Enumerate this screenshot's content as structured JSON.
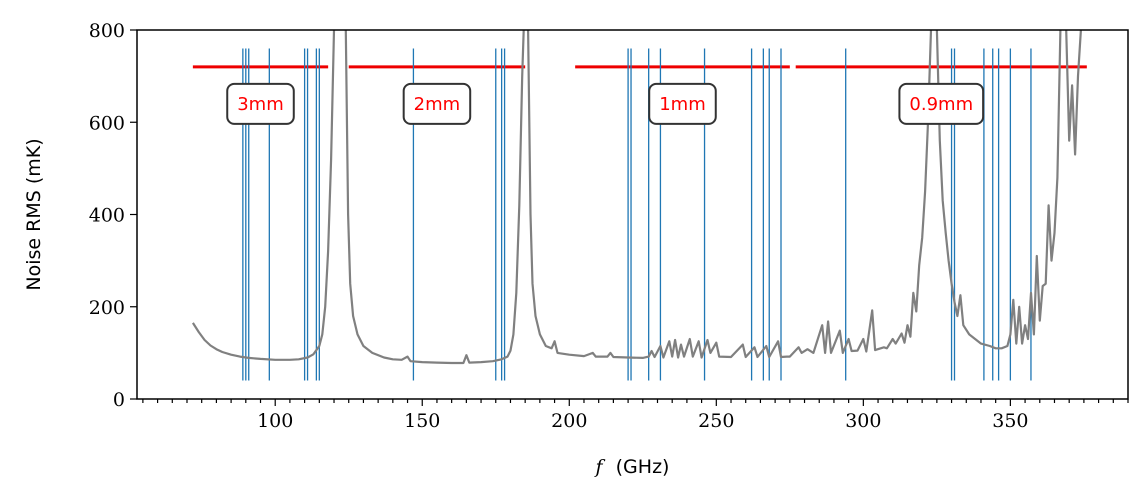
{
  "chart_data": {
    "type": "line",
    "xlabel_var": "f",
    "xlabel_unit": "(GHz)",
    "ylabel": "Noise RMS (mK)",
    "xlim": [
      53,
      390
    ],
    "ylim": [
      0,
      800
    ],
    "x_ticks": [
      100,
      150,
      200,
      250,
      300,
      350
    ],
    "y_ticks": [
      0,
      200,
      400,
      600,
      800
    ],
    "grid": false,
    "colors": {
      "noise": "#808080",
      "bands": "#ee0000",
      "lines": "#1f77b4",
      "label_box_edge": "#333333"
    },
    "bands": [
      {
        "label": "3mm",
        "x_start": 72,
        "x_end": 118,
        "y": 720
      },
      {
        "label": "2mm",
        "x_start": 125,
        "x_end": 185,
        "y": 720
      },
      {
        "label": "1mm",
        "x_start": 202,
        "x_end": 275,
        "y": 720
      },
      {
        "label": "0.9mm",
        "x_start": 277,
        "x_end": 376,
        "y": 720
      }
    ],
    "line_markers": {
      "y_range": [
        40,
        760
      ],
      "x": [
        89,
        90,
        91,
        98,
        110,
        111,
        114,
        115,
        147,
        175,
        177,
        178,
        220,
        221,
        227,
        231,
        246,
        262,
        266,
        268,
        272,
        294,
        330,
        331,
        341,
        344,
        346,
        350,
        357
      ]
    },
    "series": [
      {
        "segments": [
          [
            [
              72,
              165
            ],
            [
              74,
              145
            ],
            [
              76,
              128
            ],
            [
              78,
              116
            ],
            [
              80,
              108
            ],
            [
              82,
              102
            ],
            [
              85,
              96
            ],
            [
              88,
              92
            ],
            [
              91,
              89
            ],
            [
              95,
              87
            ],
            [
              100,
              85
            ],
            [
              105,
              85
            ],
            [
              108,
              86
            ],
            [
              111,
              90
            ],
            [
              113,
              97
            ],
            [
              115,
              115
            ],
            [
              116,
              140
            ],
            [
              117,
              200
            ],
            [
              118,
              320
            ],
            [
              119,
              520
            ],
            [
              120,
              800
            ]
          ],
          [
            [
              124,
              800
            ],
            [
              124.8,
              400
            ],
            [
              125.5,
              250
            ],
            [
              126.5,
              180
            ],
            [
              128,
              140
            ],
            [
              130,
              115
            ],
            [
              133,
              100
            ],
            [
              137,
              90
            ],
            [
              140,
              86
            ],
            [
              143,
              85
            ],
            [
              145,
              92
            ],
            [
              146,
              82
            ],
            [
              150,
              80
            ],
            [
              155,
              79
            ],
            [
              160,
              78
            ],
            [
              164,
              78
            ],
            [
              165,
              95
            ],
            [
              166,
              79
            ],
            [
              170,
              80
            ],
            [
              174,
              82
            ],
            [
              177,
              86
            ],
            [
              179,
              92
            ],
            [
              180,
              105
            ],
            [
              181,
              140
            ],
            [
              182,
              230
            ],
            [
              183,
              420
            ],
            [
              184,
              700
            ],
            [
              184.5,
              800
            ]
          ],
          [
            [
              186,
              800
            ],
            [
              186.8,
              400
            ],
            [
              187.5,
              250
            ],
            [
              188.5,
              180
            ],
            [
              190,
              140
            ],
            [
              192,
              115
            ],
            [
              194,
              110
            ],
            [
              195,
              125
            ],
            [
              196,
              100
            ],
            [
              200,
              96
            ],
            [
              205,
              93
            ],
            [
              208,
              100
            ],
            [
              209,
              92
            ],
            [
              213,
              92
            ],
            [
              214,
              100
            ],
            [
              215,
              91
            ],
            [
              220,
              90
            ],
            [
              225,
              89
            ],
            [
              227,
              92
            ],
            [
              228,
              104
            ],
            [
              229,
              91
            ],
            [
              231,
              115
            ],
            [
              232,
              90
            ],
            [
              234,
              125
            ],
            [
              235,
              92
            ],
            [
              236,
              128
            ],
            [
              237,
              90
            ],
            [
              238,
              118
            ],
            [
              239,
              92
            ],
            [
              241,
              130
            ],
            [
              242,
              92
            ],
            [
              244,
              125
            ],
            [
              245,
              90
            ],
            [
              247,
              128
            ],
            [
              248,
              100
            ],
            [
              250,
              122
            ],
            [
              251,
              92
            ],
            [
              255,
              91
            ],
            [
              259,
              118
            ],
            [
              260,
              91
            ],
            [
              263,
              112
            ],
            [
              264,
              91
            ],
            [
              267,
              115
            ],
            [
              268,
              91
            ],
            [
              271,
              125
            ],
            [
              272,
              91
            ],
            [
              274,
              92
            ],
            [
              275,
              92
            ],
            [
              278,
              112
            ],
            [
              279,
              100
            ],
            [
              281,
              108
            ],
            [
              283,
              100
            ],
            [
              286,
              160
            ],
            [
              287,
              100
            ],
            [
              288,
              168
            ],
            [
              289,
              100
            ],
            [
              292,
              148
            ],
            [
              293,
              100
            ],
            [
              295,
              130
            ],
            [
              296,
              104
            ],
            [
              298,
              105
            ],
            [
              300,
              130
            ],
            [
              301,
              103
            ],
            [
              303,
              192
            ],
            [
              304,
              106
            ],
            [
              307,
              112
            ],
            [
              308,
              110
            ],
            [
              310,
              130
            ],
            [
              311,
              120
            ],
            [
              313,
              142
            ],
            [
              314,
              122
            ],
            [
              315,
              160
            ],
            [
              316,
              135
            ],
            [
              317,
              230
            ],
            [
              318,
              190
            ],
            [
              319,
              290
            ],
            [
              320,
              350
            ],
            [
              321,
              450
            ],
            [
              322,
              600
            ],
            [
              323,
              800
            ]
          ],
          [
            [
              325,
              800
            ],
            [
              326,
              560
            ],
            [
              327,
              430
            ],
            [
              328,
              360
            ],
            [
              329,
              300
            ],
            [
              330,
              250
            ],
            [
              331,
              210
            ],
            [
              332,
              180
            ],
            [
              333,
              225
            ],
            [
              334,
              160
            ],
            [
              336,
              140
            ],
            [
              338,
              130
            ],
            [
              340,
              120
            ],
            [
              343,
              115
            ],
            [
              345,
              110
            ],
            [
              347,
              110
            ],
            [
              349,
              115
            ],
            [
              350,
              140
            ],
            [
              351,
              215
            ],
            [
              352,
              120
            ],
            [
              353,
              200
            ],
            [
              354,
              120
            ],
            [
              355,
              160
            ],
            [
              356,
              130
            ],
            [
              357,
              230
            ],
            [
              358,
              140
            ],
            [
              359,
              310
            ],
            [
              360,
              170
            ],
            [
              361,
              245
            ],
            [
              362,
              250
            ],
            [
              363,
              420
            ],
            [
              364,
              300
            ],
            [
              365,
              360
            ],
            [
              366,
              480
            ],
            [
              367,
              800
            ]
          ],
          [
            [
              369,
              800
            ],
            [
              370,
              560
            ],
            [
              371,
              680
            ],
            [
              372,
              530
            ],
            [
              373,
              700
            ],
            [
              374,
              800
            ]
          ]
        ]
      }
    ]
  }
}
